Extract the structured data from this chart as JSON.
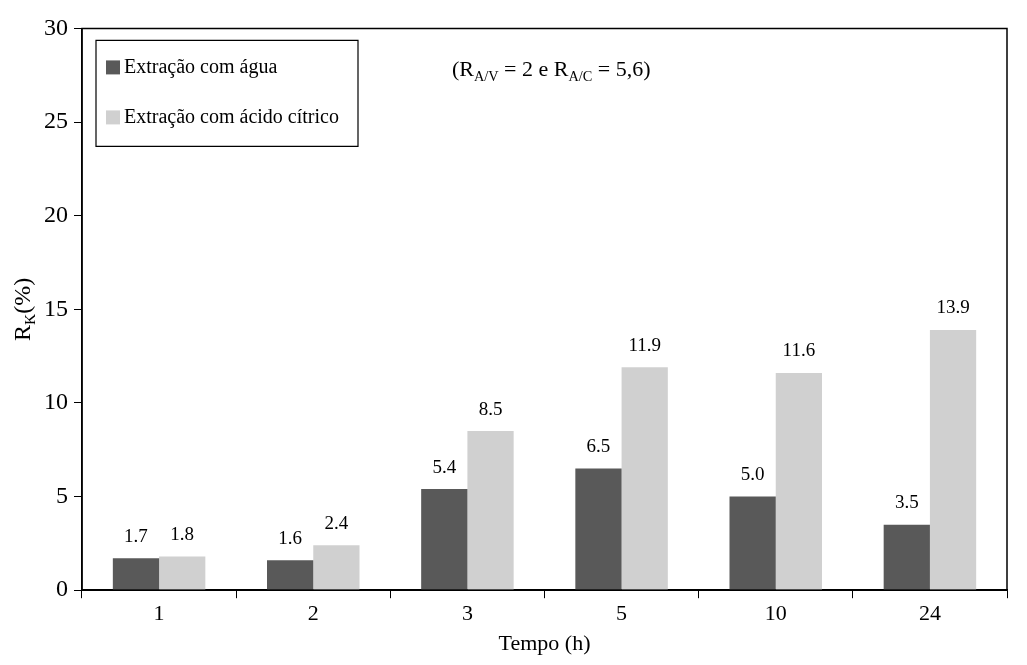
{
  "chart_data": {
    "type": "bar",
    "xlabel": "Tempo (h)",
    "ylabel": "R$_{K}$(%)",
    "categories": [
      "1",
      "2",
      "3",
      "5",
      "10",
      "24"
    ],
    "series": [
      {
        "name": "Extração com água",
        "color": "#595959",
        "values": [
          1.7,
          1.6,
          5.4,
          6.5,
          5.0,
          3.5
        ],
        "value_labels": [
          "1.7",
          "1.6",
          "5.4",
          "6.5",
          "5.0",
          "3.5"
        ]
      },
      {
        "name": "Extração com ácido cítrico",
        "color": "#d0d0d0",
        "values": [
          1.8,
          2.4,
          8.5,
          11.9,
          11.6,
          13.9
        ],
        "value_labels": [
          "1.8",
          "2.4",
          "8.5",
          "11.9",
          "11.6",
          "13.9"
        ]
      }
    ],
    "ylim": [
      0,
      30
    ],
    "yticks": [
      0,
      5,
      10,
      15,
      20,
      25,
      30
    ],
    "grid": false,
    "legend": "top left",
    "annotations": [
      "(R$_{A/V}$ = 2 e R$_{A/C}$ = 5,6)"
    ]
  }
}
